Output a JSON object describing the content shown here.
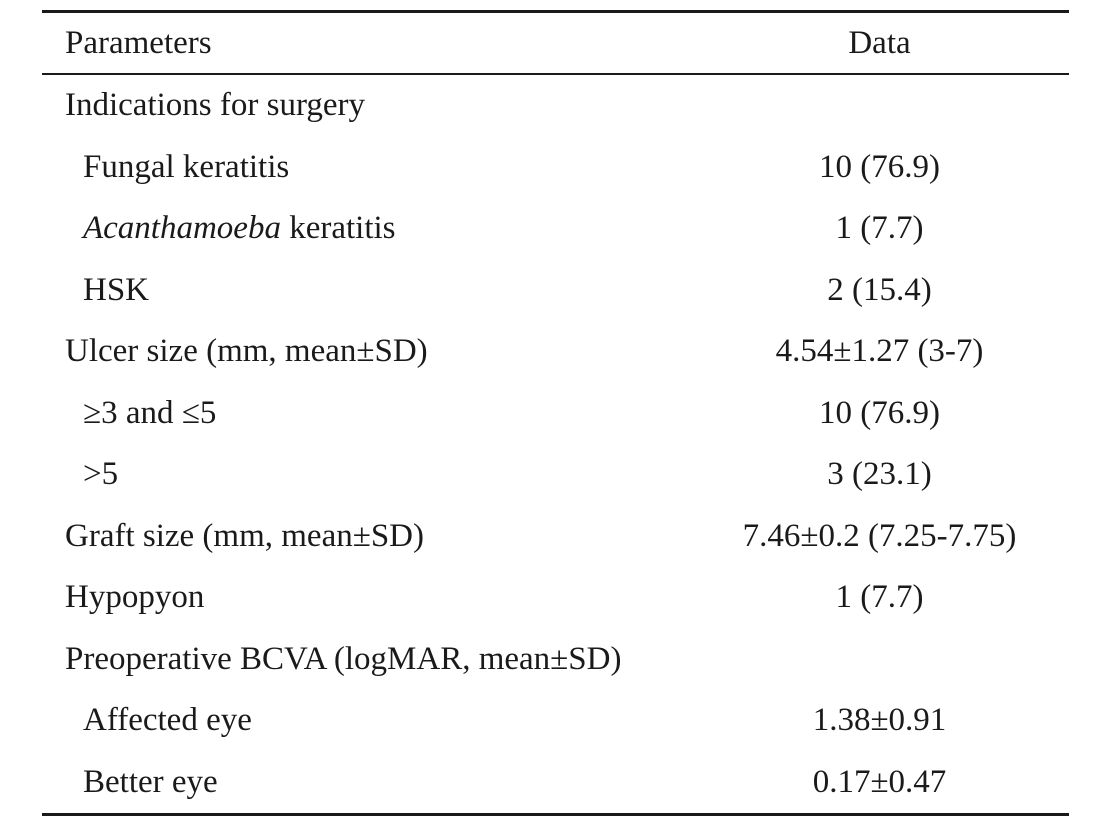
{
  "table": {
    "header": {
      "param": "Parameters",
      "data": "Data"
    },
    "rows": [
      {
        "param": "Indications for surgery",
        "data": ""
      },
      {
        "param": "Fungal keratitis",
        "data": "10 (76.9)"
      },
      {
        "param_italic": "Acanthamoeba",
        "param": " keratitis",
        "data": "1 (7.7)"
      },
      {
        "param": "HSK",
        "data": "2 (15.4)"
      },
      {
        "param": "Ulcer size (mm, mean±SD)",
        "data": "4.54±1.27 (3-7)"
      },
      {
        "param": "≥3 and ≤5",
        "data": "10 (76.9)"
      },
      {
        "param": ">5",
        "data": "3 (23.1)"
      },
      {
        "param": "Graft size (mm, mean±SD)",
        "data": "7.46±0.2 (7.25-7.75)"
      },
      {
        "param": "Hypopyon",
        "data": "1 (7.7)"
      },
      {
        "param": "Preoperative BCVA (logMAR, mean±SD)",
        "data": ""
      },
      {
        "param": "Affected eye",
        "data": "1.38±0.91"
      },
      {
        "param": "Better eye",
        "data": "0.17±0.47"
      }
    ]
  }
}
